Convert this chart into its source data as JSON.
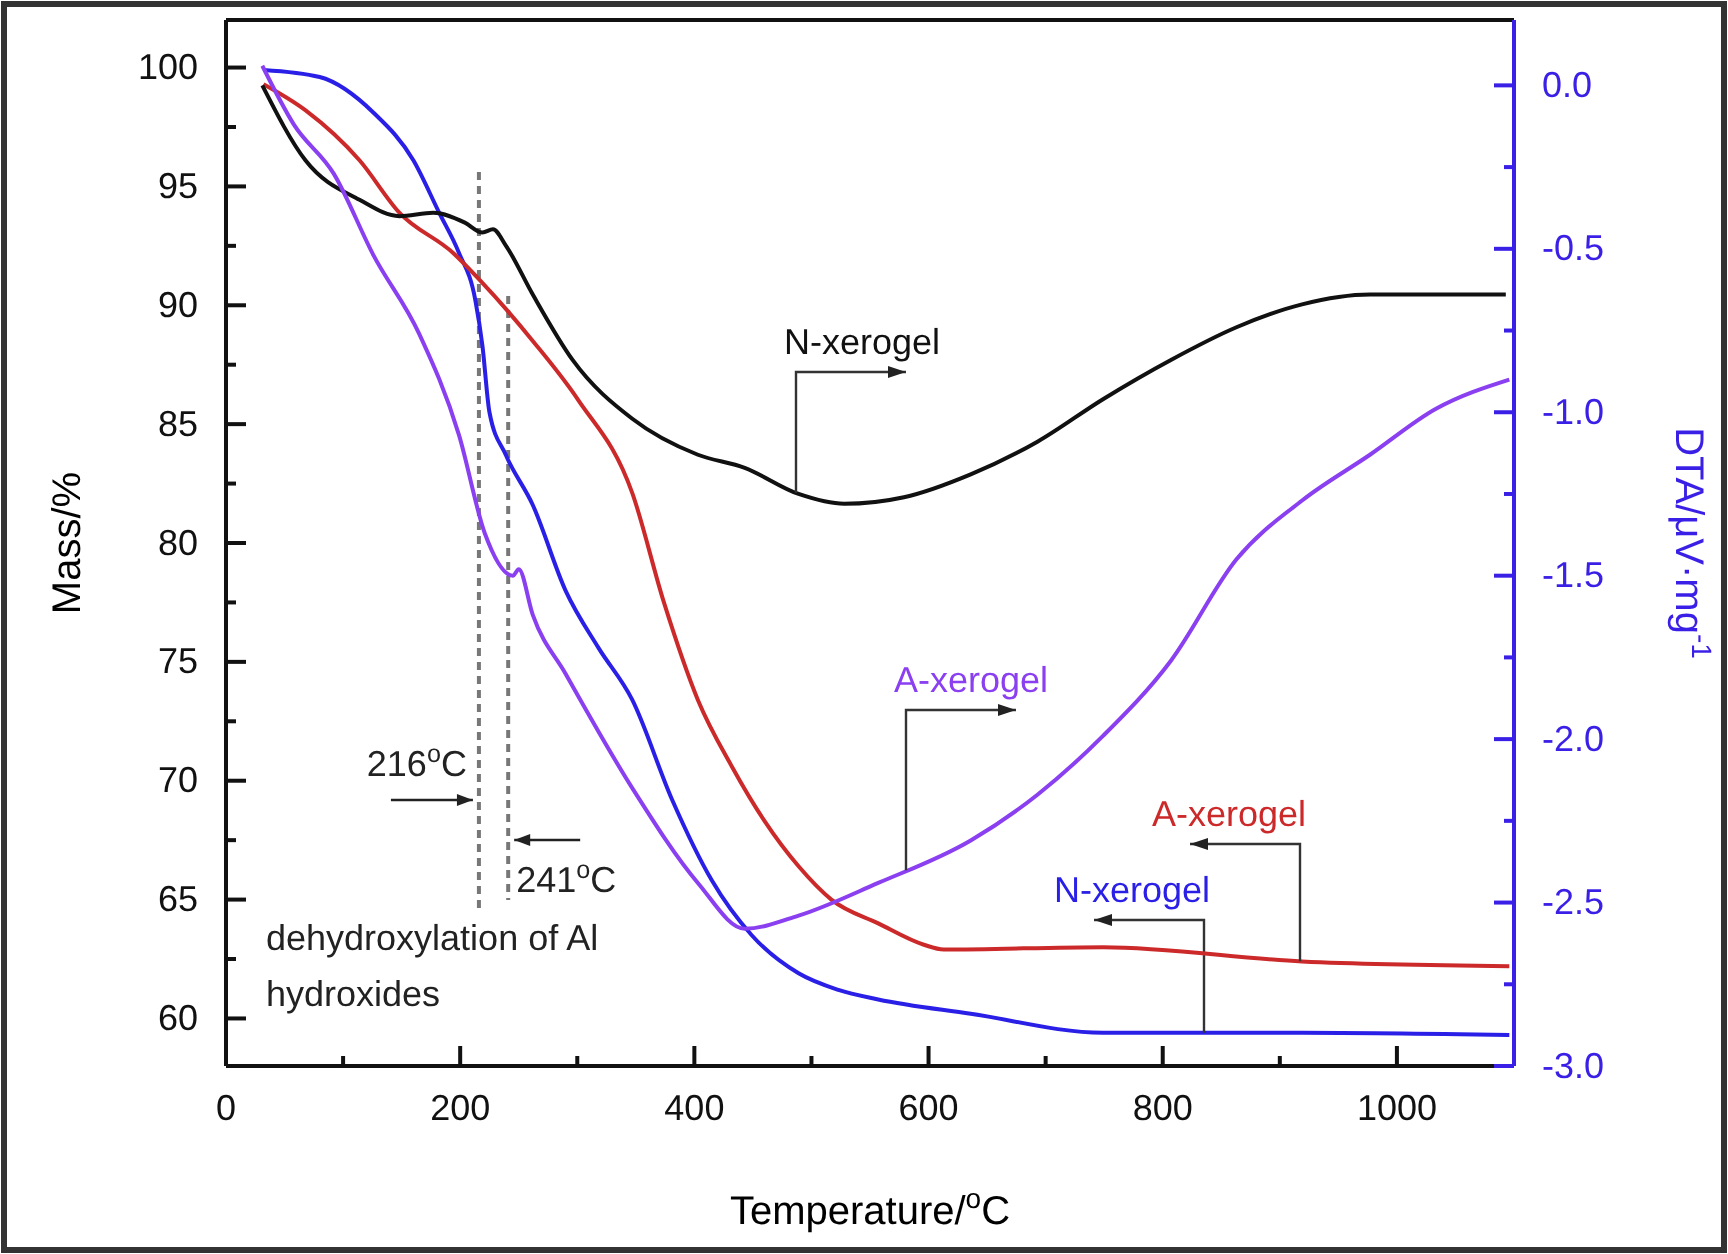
{
  "chart_data": {
    "type": "line",
    "xlabel": "Temperature/$^{o}$C",
    "ylabel": "Mass/%",
    "y2label": "DTA/μV·mg$^{-1}$",
    "xlim": [
      0,
      1100
    ],
    "xticks": [
      0,
      {
        "value": 100,
        "label": null
      },
      200,
      {
        "value": 300,
        "label": null
      },
      400,
      {
        "value": 500,
        "label": null
      },
      600,
      {
        "value": 700,
        "label": null
      },
      800,
      {
        "value": 900,
        "label": null
      },
      1000
    ],
    "ylim": [
      58,
      102
    ],
    "yticks": [
      60,
      {
        "value": 62.5,
        "label": null
      },
      65,
      {
        "value": 67.5,
        "label": null
      },
      70,
      {
        "value": 72.5,
        "label": null
      },
      75,
      {
        "value": 77.5,
        "label": null
      },
      80,
      {
        "value": 82.5,
        "label": null
      },
      85,
      {
        "value": 87.5,
        "label": null
      },
      90,
      {
        "value": 92.5,
        "label": null
      },
      95,
      {
        "value": 97.5,
        "label": null
      },
      100
    ],
    "y2lim": [
      -3.0,
      0.2
    ],
    "y2ticks": [
      {
        "value": -3,
        "label": "-3.0"
      },
      {
        "value": -2.75,
        "label": null
      },
      -2.5,
      {
        "value": -2.25,
        "label": null
      },
      {
        "value": -2,
        "label": "-2.0"
      },
      {
        "value": -1.75,
        "label": null
      },
      -1.5,
      {
        "value": -1.25,
        "label": null
      },
      {
        "value": -1,
        "label": "-1.0"
      },
      {
        "value": -0.75,
        "label": null
      },
      -0.5,
      {
        "value": -0.25,
        "label": null
      },
      {
        "value": 0,
        "label": "0.0"
      }
    ],
    "marker": "none",
    "line_style": "solid",
    "series": [
      {
        "name": "N-xerogel",
        "color": "#2a1fe6",
        "x": [
          32,
          80,
          126,
          160,
          182,
          199,
          213,
          219,
          225,
          239,
          262,
          290,
          318,
          347,
          381,
          415,
          449,
          489,
          523,
          557,
          636,
          749,
          919,
          1096
        ],
        "values": [
          99.9,
          99.6,
          98.1,
          96.1,
          93.9,
          92.2,
          90.2,
          88.3,
          85.5,
          83.7,
          81.6,
          78.0,
          75.6,
          73.4,
          69.2,
          65.8,
          63.5,
          61.9,
          61.2,
          60.8,
          60.2,
          59.4,
          59.4,
          59.3
        ]
      },
      {
        "name": "A-xerogel",
        "color": "#cc2a2a",
        "x": [
          32,
          68,
          114,
          148,
          194,
          216,
          262,
          301,
          347,
          374,
          403,
          432,
          460,
          489,
          517,
          557,
          596,
          613,
          749,
          919,
          1096
        ],
        "values": [
          99.3,
          98.2,
          96.1,
          93.9,
          92.2,
          91.1,
          88.5,
          86.0,
          82.1,
          77.5,
          73.4,
          70.6,
          68.3,
          66.4,
          65.0,
          64.0,
          63.1,
          62.9,
          63.0,
          62.4,
          62.2
        ]
      },
      {
        "name": "N-xerogel",
        "axis": "y2",
        "color": "#111111",
        "x": [
          31,
          68,
          114,
          148,
          177,
          204,
          219,
          228,
          239,
          262,
          296,
          347,
          403,
          443,
          489,
          528,
          579,
          636,
          693,
          749,
          807,
          863,
          919,
          977,
          1033,
          1093
        ],
        "values": [
          0.0,
          -0.23,
          -0.35,
          -0.4,
          -0.39,
          -0.42,
          -0.45,
          -0.44,
          -0.49,
          -0.64,
          -0.84,
          -1.02,
          -1.13,
          -1.17,
          -1.25,
          -1.28,
          -1.26,
          -1.19,
          -1.09,
          -0.96,
          -0.84,
          -0.74,
          -0.67,
          -0.64,
          -0.64,
          -0.64
        ]
      },
      {
        "name": "A-xerogel",
        "axis": "y2",
        "color": "#8a3ff0",
        "x": [
          31,
          58,
          92,
          126,
          165,
          199,
          221,
          245,
          250,
          262,
          290,
          347,
          403,
          443,
          489,
          557,
          636,
          693,
          749,
          807,
          863,
          919,
          977,
          1033,
          1096
        ],
        "values": [
          0.06,
          -0.12,
          -0.27,
          -0.52,
          -0.76,
          -1.07,
          -1.37,
          -1.5,
          -1.48,
          -1.62,
          -1.8,
          -2.15,
          -2.44,
          -2.58,
          -2.54,
          -2.44,
          -2.31,
          -2.17,
          -1.99,
          -1.76,
          -1.45,
          -1.27,
          -1.13,
          -0.99,
          -0.9
        ]
      }
    ],
    "ref_lines": [
      {
        "axis": "x",
        "value": 216,
        "label": "216$^{o}$C",
        "color": "#777777",
        "line_style": "dashed"
      },
      {
        "axis": "x",
        "value": 241,
        "label": "241$^{o}$C",
        "color": "#777777",
        "line_style": "dashed"
      }
    ],
    "annotations": [
      "dehydroxylation of Al hydroxides"
    ]
  }
}
